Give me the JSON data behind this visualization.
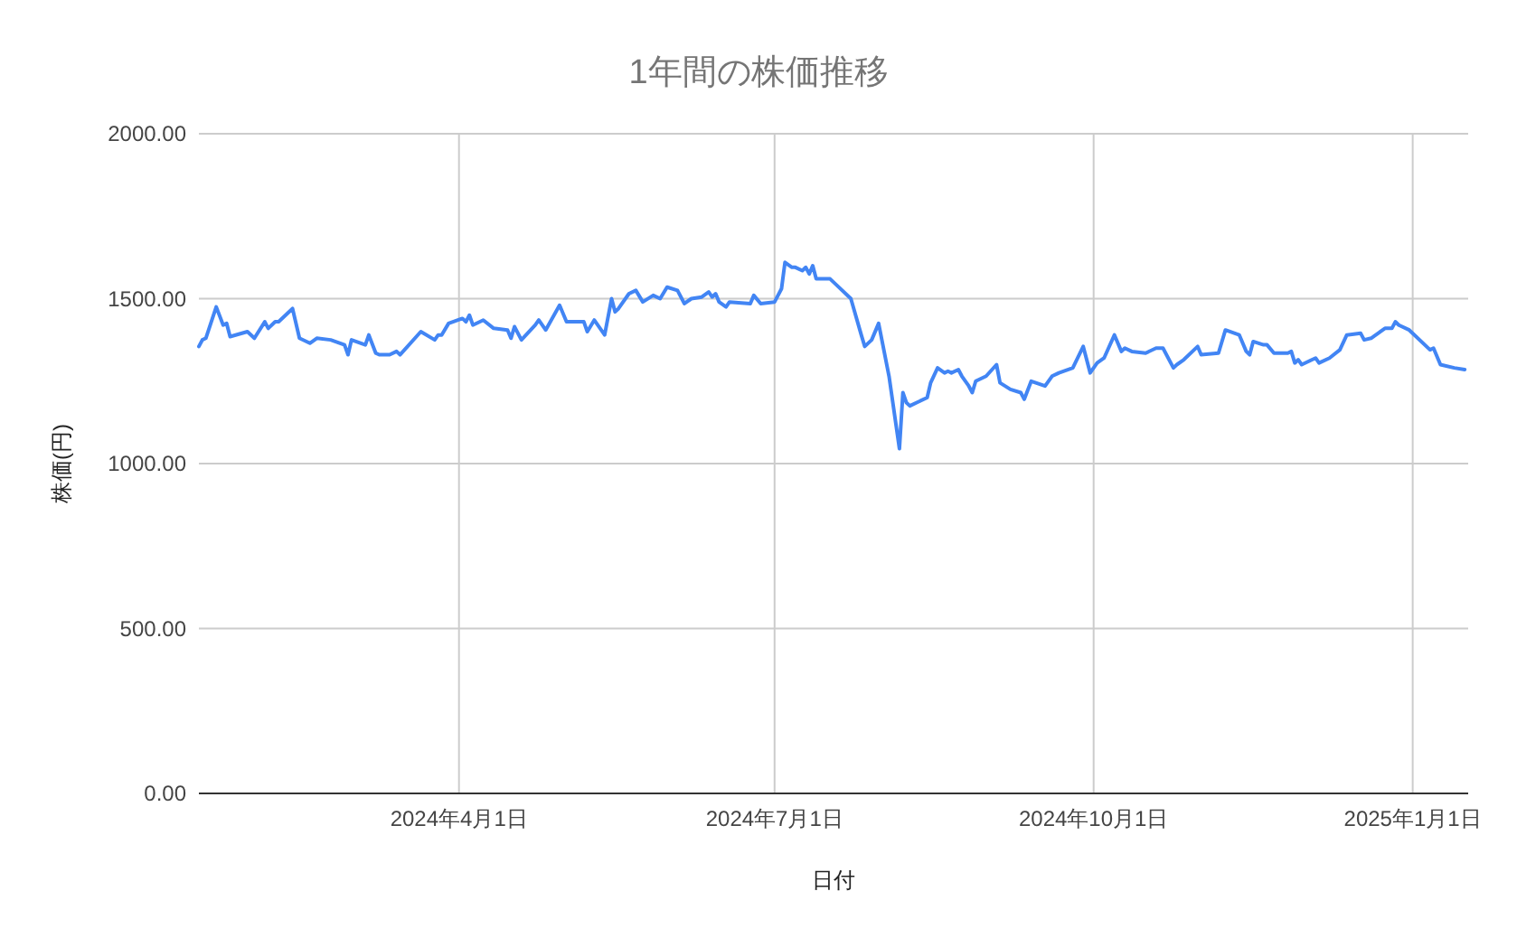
{
  "chart_data": {
    "type": "line",
    "title": "1年間の株価推移",
    "xlabel": "日付",
    "ylabel": "株価(円)",
    "x": [
      "2024-01-17",
      "2024-01-18",
      "2024-01-19",
      "2024-01-22",
      "2024-01-24",
      "2024-01-25",
      "2024-01-26",
      "2024-01-31",
      "2024-02-02",
      "2024-02-05",
      "2024-02-06",
      "2024-02-08",
      "2024-02-09",
      "2024-02-13",
      "2024-02-15",
      "2024-02-18",
      "2024-02-20",
      "2024-02-24",
      "2024-02-28",
      "2024-02-29",
      "2024-03-01",
      "2024-03-05",
      "2024-03-06",
      "2024-03-08",
      "2024-03-09",
      "2024-03-12",
      "2024-03-14",
      "2024-03-15",
      "2024-03-21",
      "2024-03-25",
      "2024-03-26",
      "2024-03-27",
      "2024-03-29",
      "2024-04-02",
      "2024-04-03",
      "2024-04-04",
      "2024-04-05",
      "2024-04-08",
      "2024-04-11",
      "2024-04-15",
      "2024-04-16",
      "2024-04-17",
      "2024-04-19",
      "2024-04-23",
      "2024-04-24",
      "2024-04-26",
      "2024-04-30",
      "2024-05-02",
      "2024-05-07",
      "2024-05-08",
      "2024-05-10",
      "2024-05-13",
      "2024-05-15",
      "2024-05-16",
      "2024-05-17",
      "2024-05-20",
      "2024-05-22",
      "2024-05-24",
      "2024-05-27",
      "2024-05-29",
      "2024-05-31",
      "2024-06-03",
      "2024-06-05",
      "2024-06-07",
      "2024-06-10",
      "2024-06-12",
      "2024-06-13",
      "2024-06-14",
      "2024-06-15",
      "2024-06-17",
      "2024-06-18",
      "2024-06-24",
      "2024-06-25",
      "2024-06-27",
      "2024-07-01",
      "2024-07-03",
      "2024-07-04",
      "2024-07-06",
      "2024-07-07",
      "2024-07-09",
      "2024-07-10",
      "2024-07-11",
      "2024-07-12",
      "2024-07-13",
      "2024-07-17",
      "2024-07-19",
      "2024-07-23",
      "2024-07-26",
      "2024-07-27",
      "2024-07-29",
      "2024-07-31",
      "2024-08-03",
      "2024-08-06",
      "2024-08-07",
      "2024-08-08",
      "2024-08-09",
      "2024-08-14",
      "2024-08-15",
      "2024-08-17",
      "2024-08-19",
      "2024-08-20",
      "2024-08-21",
      "2024-08-23",
      "2024-08-24",
      "2024-08-26",
      "2024-08-27",
      "2024-08-28",
      "2024-08-31",
      "2024-09-03",
      "2024-09-04",
      "2024-09-07",
      "2024-09-10",
      "2024-09-11",
      "2024-09-13",
      "2024-09-17",
      "2024-09-19",
      "2024-09-21",
      "2024-09-25",
      "2024-09-28",
      "2024-09-30",
      "2024-10-02",
      "2024-10-04",
      "2024-10-07",
      "2024-10-09",
      "2024-10-10",
      "2024-10-12",
      "2024-10-16",
      "2024-10-19",
      "2024-10-21",
      "2024-10-24",
      "2024-10-25",
      "2024-10-27",
      "2024-10-31",
      "2024-11-01",
      "2024-11-06",
      "2024-11-08",
      "2024-11-12",
      "2024-11-14",
      "2024-11-15",
      "2024-11-16",
      "2024-11-19",
      "2024-11-20",
      "2024-11-22",
      "2024-11-26",
      "2024-11-27",
      "2024-11-28",
      "2024-11-29",
      "2024-11-30",
      "2024-12-03",
      "2024-12-04",
      "2024-12-05",
      "2024-12-08",
      "2024-12-11",
      "2024-12-13",
      "2024-12-17",
      "2024-12-18",
      "2024-12-20",
      "2024-12-22",
      "2024-12-24",
      "2024-12-26",
      "2024-12-27",
      "2024-12-28",
      "2024-12-31",
      "2025-01-06",
      "2025-01-07",
      "2025-01-09",
      "2025-01-13",
      "2025-01-16"
    ],
    "series": [
      {
        "color": "#4285f4",
        "values": [
          1355,
          1375,
          1380,
          1475,
          1420,
          1425,
          1385,
          1400,
          1380,
          1430,
          1410,
          1430,
          1430,
          1470,
          1380,
          1365,
          1380,
          1375,
          1360,
          1330,
          1375,
          1360,
          1390,
          1335,
          1330,
          1330,
          1340,
          1330,
          1400,
          1375,
          1390,
          1390,
          1425,
          1440,
          1430,
          1450,
          1420,
          1435,
          1410,
          1405,
          1380,
          1415,
          1375,
          1420,
          1435,
          1405,
          1480,
          1430,
          1430,
          1400,
          1435,
          1390,
          1500,
          1460,
          1470,
          1515,
          1525,
          1490,
          1510,
          1500,
          1535,
          1525,
          1485,
          1500,
          1505,
          1520,
          1505,
          1515,
          1490,
          1475,
          1490,
          1485,
          1510,
          1485,
          1490,
          1530,
          1610,
          1595,
          1595,
          1585,
          1595,
          1575,
          1600,
          1560,
          1560,
          1540,
          1500,
          1390,
          1355,
          1375,
          1425,
          1265,
          1045,
          1215,
          1185,
          1175,
          1200,
          1245,
          1290,
          1275,
          1280,
          1275,
          1285,
          1265,
          1235,
          1215,
          1250,
          1265,
          1300,
          1245,
          1225,
          1215,
          1195,
          1250,
          1235,
          1265,
          1275,
          1290,
          1355,
          1275,
          1305,
          1320,
          1390,
          1340,
          1350,
          1340,
          1335,
          1350,
          1350,
          1290,
          1300,
          1315,
          1355,
          1330,
          1335,
          1405,
          1390,
          1340,
          1330,
          1370,
          1360,
          1360,
          1335,
          1335,
          1340,
          1305,
          1315,
          1300,
          1315,
          1320,
          1305,
          1320,
          1345,
          1390,
          1395,
          1375,
          1380,
          1395,
          1410,
          1410,
          1430,
          1420,
          1405,
          1345,
          1350,
          1300,
          1290,
          1285
        ]
      }
    ],
    "xlim": [
      "2024-01-17",
      "2025-01-17"
    ],
    "xticks": [
      {
        "value": "2024-04-01",
        "label": "2024年4月1日"
      },
      {
        "value": "2024-07-01",
        "label": "2024年7月1日"
      },
      {
        "value": "2024-10-01",
        "label": "2024年10月1日"
      },
      {
        "value": "2025-01-01",
        "label": "2025年1月1日"
      }
    ],
    "ylim": [
      0,
      2000
    ],
    "yticks": [
      {
        "value": 0,
        "label": "0.00"
      },
      {
        "value": 500,
        "label": "500.00"
      },
      {
        "value": 1000,
        "label": "1000.00"
      },
      {
        "value": 1500,
        "label": "1500.00"
      },
      {
        "value": 2000,
        "label": "2000.00"
      }
    ],
    "grid": true,
    "marker": "none",
    "line_style": "solid"
  }
}
